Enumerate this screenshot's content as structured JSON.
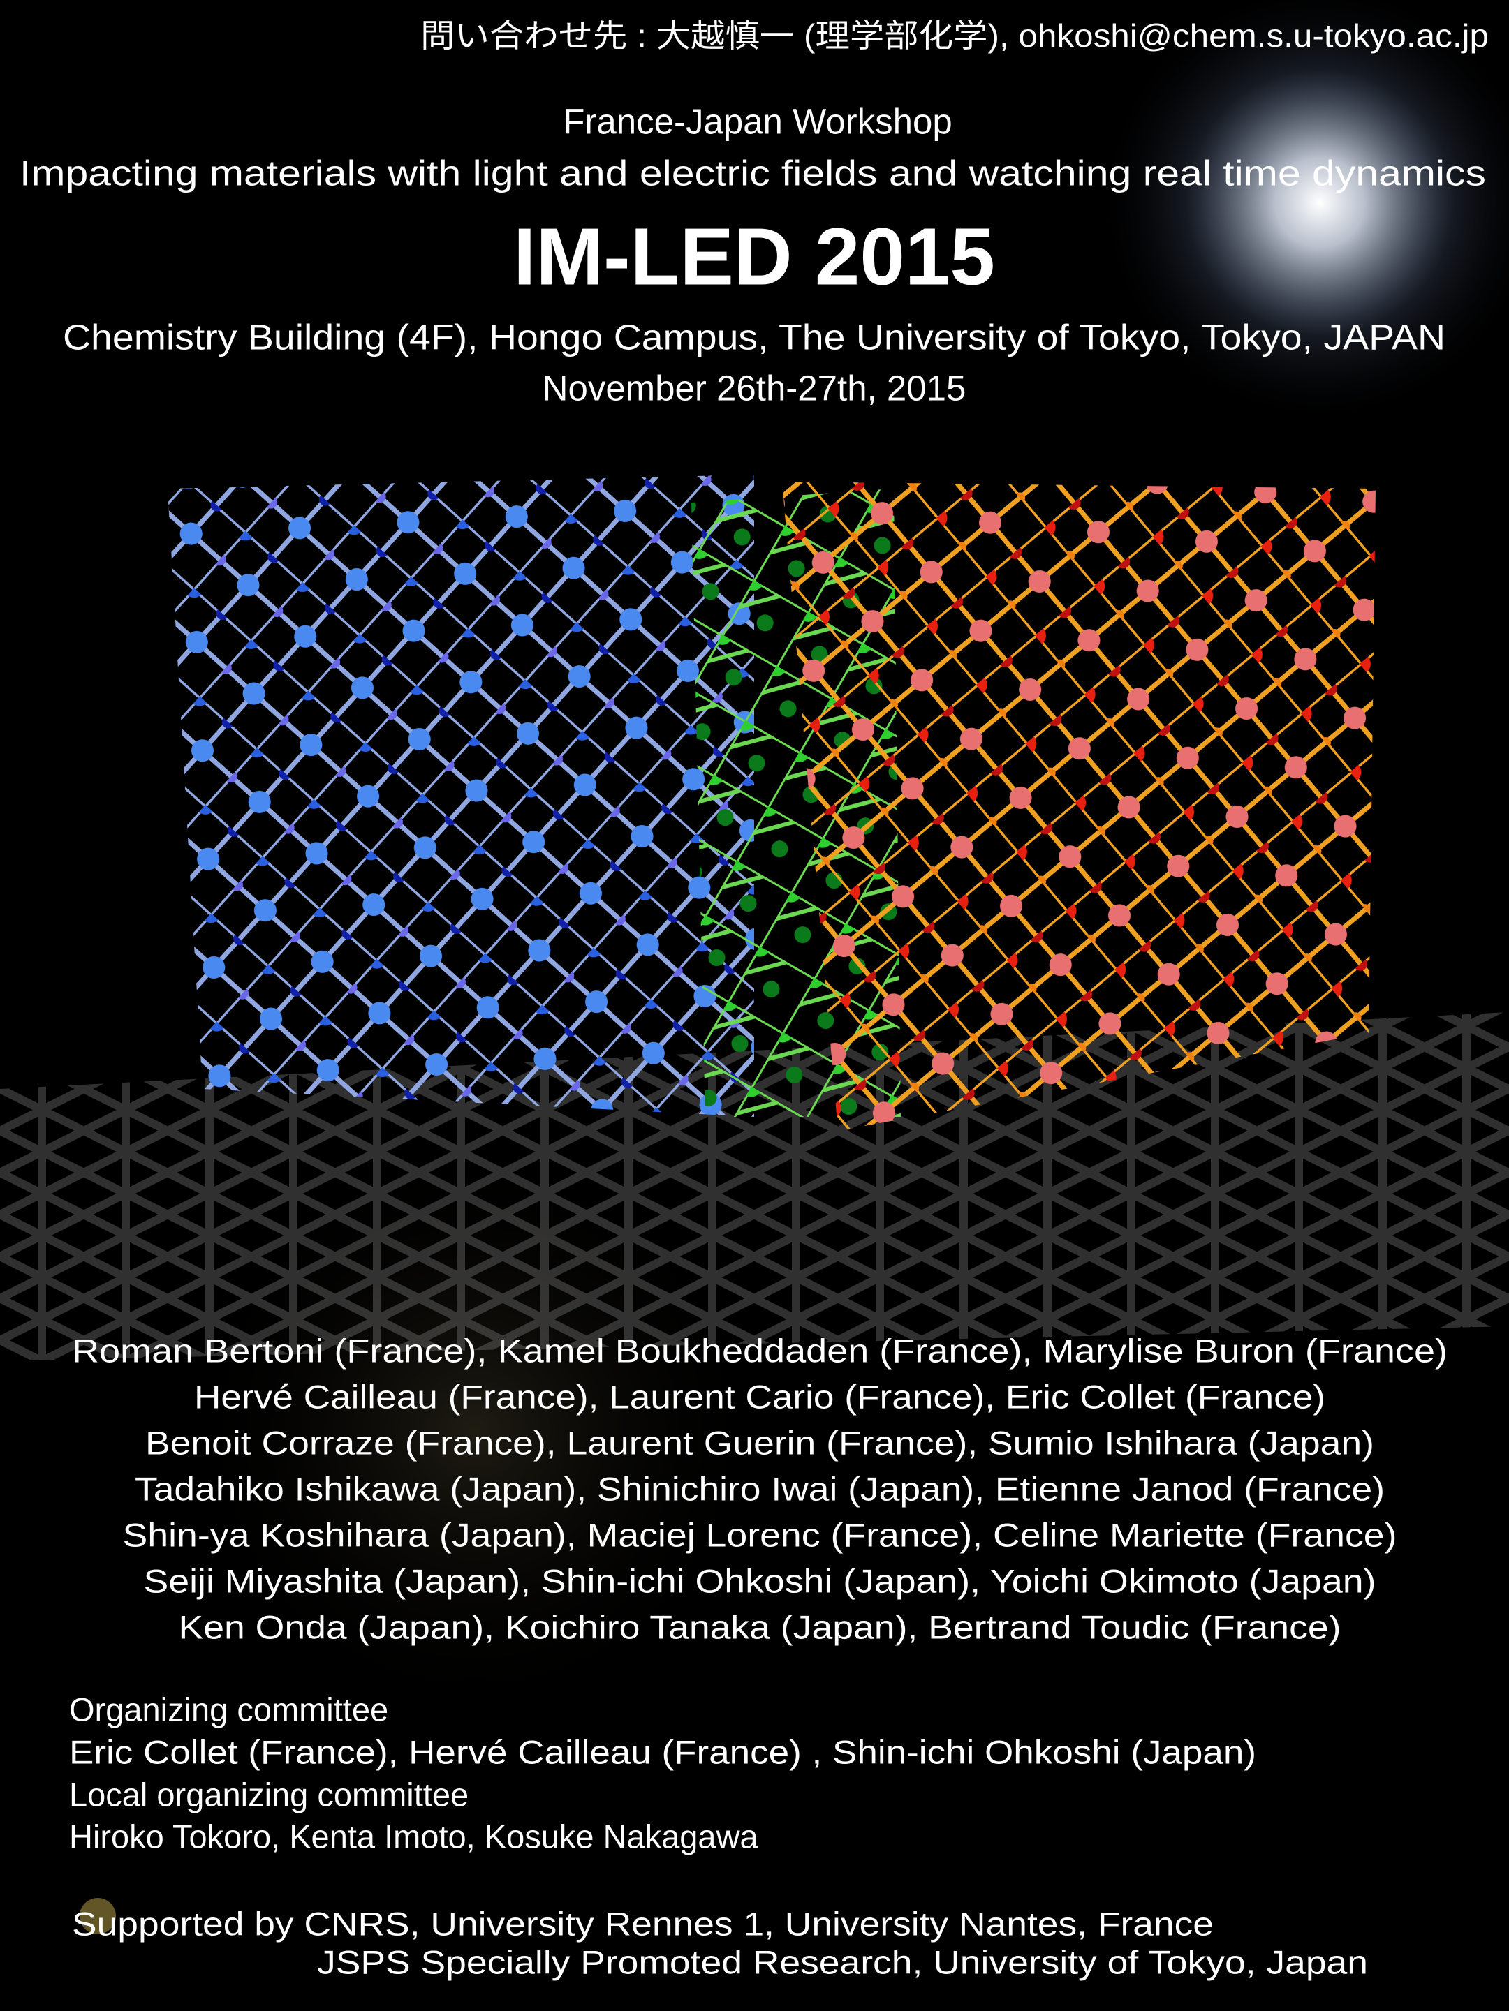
{
  "header": {
    "contact": "問い合わせ先 : 大越慎一 (理学部化学), ohkoshi@chem.s.u-tokyo.ac.jp",
    "workshop": "France-Japan Workshop",
    "subtitle": "Impacting materials with light and electric fields and watching real time dynamics",
    "title": "IM-LED 2015",
    "venue": "Chemistry Building (4F), Hongo Campus, The University of Tokyo, Tokyo, JAPAN",
    "date": "November 26th-27th, 2015"
  },
  "speakers": [
    "Roman Bertoni (France), Kamel Boukheddaden (France), Marylise Buron (France)",
    "Hervé Cailleau (France), Laurent Cario (France), Eric Collet (France)",
    "Benoit Corraze (France), Laurent Guerin (France), Sumio Ishihara (Japan)",
    "Tadahiko Ishikawa (Japan), Shinichiro Iwai (Japan), Etienne Janod (France)",
    "Shin-ya Koshihara (Japan), Maciej Lorenc (France), Celine Mariette (France)",
    "Seiji Miyashita (Japan), Shin-ichi Ohkoshi (Japan), Yoichi Okimoto (Japan)",
    "Ken Onda (Japan), Koichiro Tanaka (Japan), Bertrand Toudic (France)"
  ],
  "committee": {
    "organizing_label": "Organizing committee",
    "organizing": "Eric Collet (France), Hervé Cailleau (France) , Shin-ichi Ohkoshi (Japan)",
    "local_label": "Local organizing committee",
    "local": "Hiroko Tokoro, Kenta Imoto, Kosuke Nakagawa"
  },
  "support": [
    "Supported by CNRS, University Rennes 1, University Nantes, France",
    "JSPS  Specially Promoted Research, University of Tokyo, Japan"
  ]
}
